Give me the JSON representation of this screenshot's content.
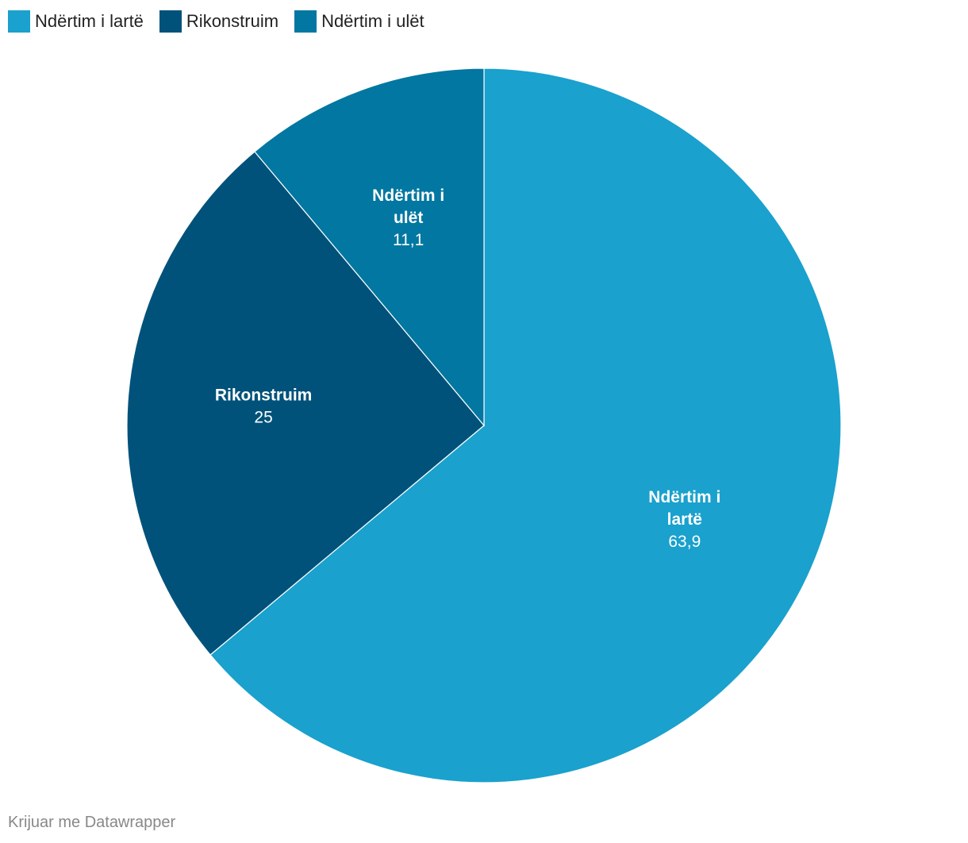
{
  "chart_data": {
    "type": "pie",
    "slices": [
      {
        "label": "Ndërtim i lartë",
        "label_lines": [
          "Ndërtim i",
          "lartë"
        ],
        "value": 63.9,
        "value_text": "63,9",
        "color": "#1aa1cd"
      },
      {
        "label": "Rikonstruim",
        "label_lines": [
          "Rikonstruim"
        ],
        "value": 25,
        "value_text": "25",
        "color": "#00527a"
      },
      {
        "label": "Ndërtim i ulët",
        "label_lines": [
          "Ndërtim i",
          "ulët"
        ],
        "value": 11.1,
        "value_text": "11,1",
        "color": "#0177a1"
      }
    ],
    "legend_placement": "top-left",
    "start_angle": "top",
    "direction": "clockwise"
  },
  "footer": {
    "credit": "Krijuar me Datawrapper"
  }
}
